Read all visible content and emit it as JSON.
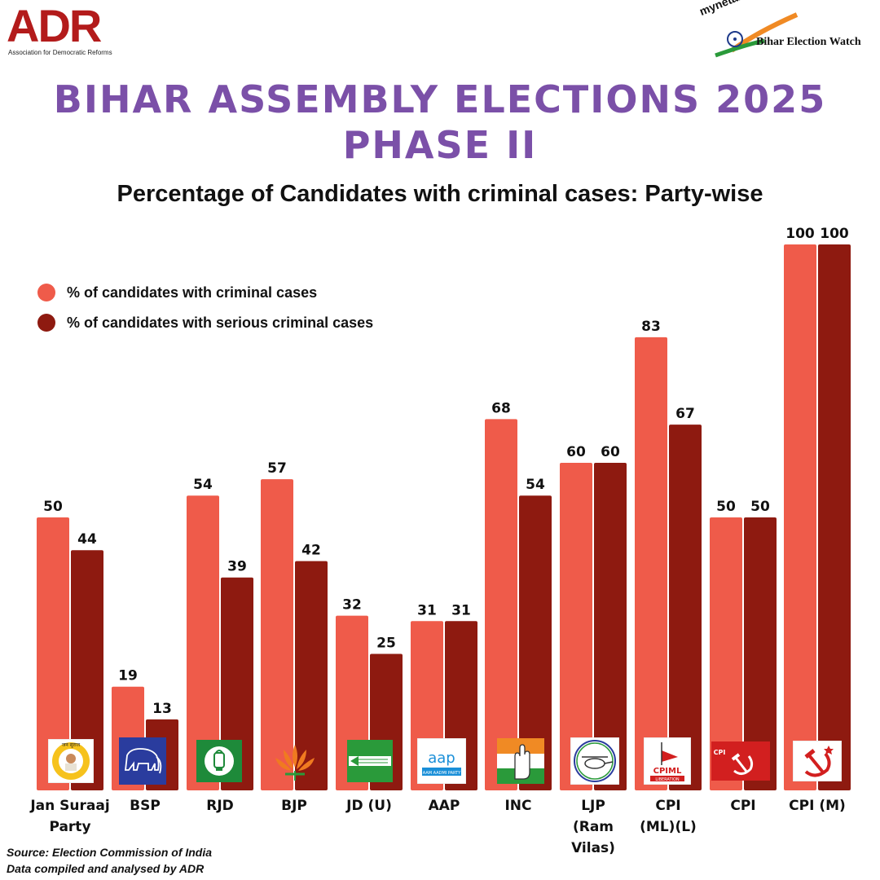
{
  "header": {
    "adr_logo": "ADR",
    "adr_sub": "Association for Democratic Reforms",
    "myneta_logo": "myneta.info",
    "bew_text": "Bihar Election Watch"
  },
  "title_line1": "BIHAR ASSEMBLY ELECTIONS 2025",
  "title_line2": "PHASE II",
  "colors": {
    "criminal": "#ef5b4a",
    "serious": "#8e1a10",
    "title": "#7b50a8"
  },
  "chart_data": {
    "type": "bar",
    "title": "Percentage of Candidates with criminal cases: Party-wise",
    "categories": [
      "Jan Suraaj Party",
      "BSP",
      "RJD",
      "BJP",
      "JD (U)",
      "AAP",
      "INC",
      "LJP (Ram Vilas)",
      "CPI (ML)(L)",
      "CPI",
      "CPI (M)"
    ],
    "category_lines": [
      [
        "Jan Suraaj",
        "Party"
      ],
      [
        "BSP"
      ],
      [
        "RJD"
      ],
      [
        "BJP"
      ],
      [
        "JD (U)"
      ],
      [
        "AAP"
      ],
      [
        "INC"
      ],
      [
        "LJP",
        "(Ram",
        "Vilas)"
      ],
      [
        "CPI",
        "(ML)(L)"
      ],
      [
        "CPI"
      ],
      [
        "CPI (M)"
      ]
    ],
    "series": [
      {
        "name": "% of candidates with criminal cases",
        "values": [
          50,
          19,
          54,
          57,
          32,
          31,
          68,
          60,
          83,
          50,
          100
        ]
      },
      {
        "name": "% of candidates with serious criminal cases",
        "values": [
          44,
          13,
          39,
          42,
          25,
          31,
          54,
          60,
          67,
          50,
          100
        ]
      }
    ],
    "ylim": [
      0,
      100
    ],
    "grid": false,
    "legend": "top-left",
    "xlabel": "",
    "ylabel": ""
  },
  "party_logo_text": {
    "jsp": "जन सुराज",
    "aap_main": "aap",
    "aap_sub": "AAM AADMI PARTY",
    "cpiml_main": "CPIML",
    "cpiml_sub": "LIBERATION",
    "cpi_letters": "CPI"
  },
  "source_line1": "Source: Election Commission of India",
  "source_line2": "Data compiled and analysed by ADR"
}
